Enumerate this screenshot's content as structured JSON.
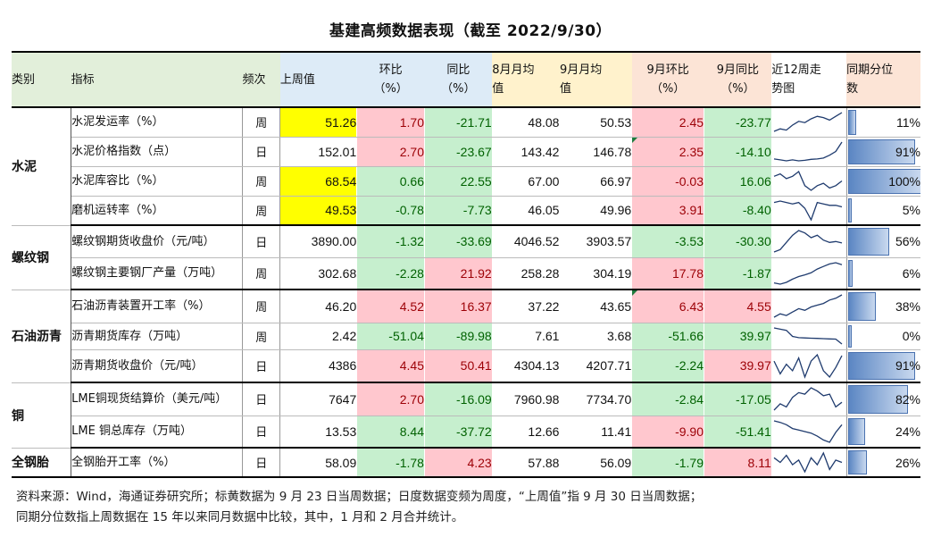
{
  "title": "基建高频数据表现（截至 2022/9/30）",
  "headers": {
    "category": "类别",
    "indicator": "指标",
    "frequency": "频次",
    "last_week": "上周值",
    "wow": "环比\n（%）",
    "yoy": "同比\n（%）",
    "aug_avg": "8月月均\n值",
    "sep_avg": "9月月均\n值",
    "sep_mom": "9月环比\n（%）",
    "sep_yoy": "9月同比\n（%）",
    "trend": "近12周走\n势图",
    "percentile": "同期分位\n数"
  },
  "groups": [
    {
      "category": "水泥",
      "rows": [
        {
          "indicator": "水泥发运率（%）",
          "freq": "周",
          "last": "51.26",
          "last_hl": "yellow",
          "wow": "1.70",
          "wow_c": "red",
          "yoy": "-21.71",
          "yoy_c": "green",
          "aug": "48.08",
          "sep": "50.53",
          "mom": "2.45",
          "mom_c": "red",
          "syoy": "-23.77",
          "syoy_c": "green",
          "spark": [
            40,
            42,
            41,
            45,
            48,
            47,
            50,
            52,
            51,
            49,
            52,
            55
          ],
          "pct": 11,
          "pct_label": "11%"
        },
        {
          "indicator": "水泥价格指数（点）",
          "freq": "日",
          "last": "152.01",
          "last_hl": "",
          "wow": "2.70",
          "wow_c": "red",
          "yoy": "-23.67",
          "yoy_c": "green",
          "aug": "143.42",
          "sep": "146.78",
          "mom": "2.35",
          "mom_c": "red",
          "syoy": "-14.10",
          "syoy_c": "green",
          "spark": [
            143,
            142.5,
            142,
            142.5,
            142,
            142.3,
            142.8,
            143,
            143.5,
            145,
            147,
            152
          ],
          "pct": 91,
          "pct_label": "91%",
          "tri": true
        },
        {
          "indicator": "水泥库容比（%）",
          "freq": "周",
          "last": "68.54",
          "last_hl": "yellow",
          "wow": "0.66",
          "wow_c": "green",
          "yoy": "22.55",
          "yoy_c": "green",
          "aug": "67.00",
          "sep": "66.97",
          "mom": "-0.03",
          "mom_c": "red",
          "syoy": "16.06",
          "syoy_c": "green",
          "spark": [
            70,
            71,
            69,
            70,
            72,
            66,
            64,
            66,
            67,
            65,
            66,
            68
          ],
          "pct": 100,
          "pct_label": "100%"
        },
        {
          "indicator": "磨机运转率（%）",
          "freq": "周",
          "last": "49.53",
          "last_hl": "yellow",
          "wow": "-0.78",
          "wow_c": "green",
          "yoy": "-7.73",
          "yoy_c": "green",
          "aug": "46.05",
          "sep": "49.96",
          "mom": "3.91",
          "mom_c": "red",
          "syoy": "-8.40",
          "syoy_c": "green",
          "spark": [
            52,
            53,
            52,
            51,
            52,
            48,
            40,
            52,
            51,
            50,
            50,
            49
          ],
          "pct": 5,
          "pct_label": "5%"
        }
      ]
    },
    {
      "category": "螺纹钢",
      "rows": [
        {
          "indicator": "螺纹钢期货收盘价（元/吨）",
          "freq": "日",
          "last": "3890.00",
          "last_hl": "",
          "wow": "-1.32",
          "wow_c": "green",
          "yoy": "-33.69",
          "yoy_c": "green",
          "aug": "4046.52",
          "sep": "3903.57",
          "mom": "-3.53",
          "mom_c": "green",
          "syoy": "-30.30",
          "syoy_c": "green",
          "spark": [
            3700,
            3750,
            3900,
            4050,
            4150,
            4100,
            4000,
            4050,
            3950,
            3900,
            3920,
            3890
          ],
          "pct": 56,
          "pct_label": "56%"
        },
        {
          "indicator": "螺纹钢主要钢厂产量（万吨）",
          "freq": "周",
          "last": "302.68",
          "last_hl": "",
          "wow": "-2.28",
          "wow_c": "green",
          "yoy": "21.92",
          "yoy_c": "red",
          "aug": "258.28",
          "sep": "304.19",
          "mom": "17.78",
          "mom_c": "red",
          "syoy": "-1.87",
          "syoy_c": "green",
          "spark": [
            230,
            225,
            232,
            245,
            255,
            262,
            270,
            285,
            295,
            305,
            310,
            302
          ],
          "pct": 6,
          "pct_label": "6%"
        }
      ]
    },
    {
      "category": "石油沥青",
      "rows": [
        {
          "indicator": "石油沥青装置开工率（%）",
          "freq": "周",
          "last": "46.20",
          "last_hl": "",
          "wow": "4.52",
          "wow_c": "red",
          "yoy": "16.37",
          "yoy_c": "red",
          "aug": "37.22",
          "sep": "43.65",
          "mom": "6.43",
          "mom_c": "red",
          "syoy": "4.55",
          "syoy_c": "red",
          "spark": [
            33,
            35,
            34,
            36,
            38,
            37,
            39,
            40,
            41,
            43,
            44,
            46
          ],
          "pct": 38,
          "pct_label": "38%",
          "tri": true
        },
        {
          "indicator": "沥青期货库存（万吨）",
          "freq": "周",
          "last": "2.42",
          "last_hl": "",
          "wow": "-51.04",
          "wow_c": "green",
          "yoy": "-89.98",
          "yoy_c": "green",
          "aug": "7.61",
          "sep": "3.68",
          "mom": "-51.66",
          "mom_c": "green",
          "syoy": "39.97",
          "syoy_c": "green",
          "spark": [
            9,
            8.5,
            8,
            5.5,
            5,
            4.9,
            4.8,
            4.7,
            4.6,
            4.5,
            4.4,
            2.4
          ],
          "pct": 0,
          "pct_label": "0%"
        },
        {
          "indicator": "沥青期货收盘价（元/吨）",
          "freq": "日",
          "last": "4386",
          "last_hl": "",
          "wow": "4.45",
          "wow_c": "red",
          "yoy": "50.41",
          "yoy_c": "red",
          "aug": "4304.13",
          "sep": "4207.71",
          "mom": "-2.24",
          "mom_c": "green",
          "syoy": "39.97",
          "syoy_c": "red",
          "spark": [
            4300,
            4100,
            4250,
            4150,
            4350,
            4050,
            4300,
            4400,
            4150,
            4050,
            4200,
            4386
          ],
          "pct": 91,
          "pct_label": "91%"
        }
      ]
    },
    {
      "category": "铜",
      "rows": [
        {
          "indicator": "LME铜现货结算价（美元/吨）",
          "freq": "日",
          "last": "7647",
          "last_hl": "",
          "wow": "2.70",
          "wow_c": "red",
          "yoy": "-16.09",
          "yoy_c": "green",
          "aug": "7960.98",
          "sep": "7734.70",
          "mom": "-2.84",
          "mom_c": "green",
          "syoy": "-17.05",
          "syoy_c": "green",
          "spark": [
            7400,
            7600,
            7500,
            7800,
            7950,
            7900,
            8100,
            8000,
            7850,
            7900,
            7500,
            7647
          ],
          "pct": 82,
          "pct_label": "82%"
        },
        {
          "indicator": "LME 铜总库存（万吨）",
          "freq": "日",
          "last": "13.53",
          "last_hl": "",
          "wow": "8.44",
          "wow_c": "green",
          "yoy": "-37.72",
          "yoy_c": "green",
          "aug": "12.66",
          "sep": "11.41",
          "mom": "-9.90",
          "mom_c": "red",
          "syoy": "-51.41",
          "syoy_c": "green",
          "spark": [
            14,
            13.8,
            13.5,
            13,
            12.8,
            12.6,
            12.4,
            12,
            11.5,
            11.2,
            12.5,
            13.5
          ],
          "pct": 24,
          "pct_label": "24%"
        }
      ]
    },
    {
      "category": "全钢胎",
      "rows": [
        {
          "indicator": "全钢胎开工率（%）",
          "freq": "日",
          "last": "58.09",
          "last_hl": "",
          "wow": "-1.78",
          "wow_c": "green",
          "yoy": "4.23",
          "yoy_c": "red",
          "aug": "57.88",
          "sep": "56.09",
          "mom": "-1.79",
          "mom_c": "green",
          "syoy": "8.11",
          "syoy_c": "red",
          "spark": [
            60,
            58,
            61,
            57,
            59,
            54,
            60,
            57,
            62,
            55,
            59,
            58
          ],
          "pct": 26,
          "pct_label": "26%"
        }
      ]
    }
  ],
  "source_line1": "资料来源：Wind，海通证券研究所；标黄数据为 9 月 23 日当周数据；日度数据变频为周度，“上周值”指 9 月 30 日当周数据；",
  "source_line2": "同期分位数指上周数据在 15 年以来同月数据中比较，其中，1 月和 2 月合并统计。"
}
